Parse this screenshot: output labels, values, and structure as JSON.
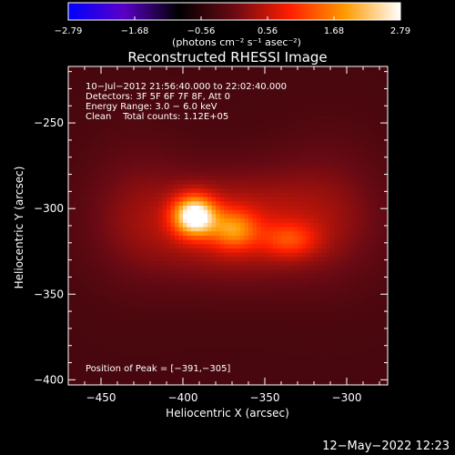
{
  "chart_data": {
    "type": "heatmap",
    "title": "Reconstructed RHESSI Image",
    "xlabel": "Heliocentric X (arcsec)",
    "ylabel": "Heliocentric Y (arcsec)",
    "xlim": [
      -470,
      -275
    ],
    "ylim": [
      -403,
      -217
    ],
    "x_ticks": [
      -450,
      -400,
      -350,
      -300
    ],
    "y_ticks": [
      -250,
      -300,
      -350,
      -400
    ],
    "x_tick_labels": [
      "−450",
      "−400",
      "−350",
      "−300"
    ],
    "y_tick_labels": [
      "−250",
      "−300",
      "−350",
      "−400"
    ],
    "colorbar": {
      "min": -2.79,
      "max": 2.79,
      "tick_labels": [
        "−2.79",
        "−1.68",
        "−0.56",
        "0.56",
        "1.68",
        "2.79"
      ],
      "units": "(photons cm⁻² s⁻¹ asec⁻²)",
      "colormap": [
        "#0000ff",
        "#5a00c8",
        "#000000",
        "#6a0a14",
        "#ff1e00",
        "#ff9a00",
        "#ffffff"
      ]
    },
    "annotations": [
      "10−Jul−2012 21:56:40.000 to 22:02:40.000",
      "Detectors: 3F 5F 6F 7F 8F, Att 0",
      "Energy Range: 3.0 − 6.0 keV",
      "Clean    Total counts: 1.12E+05"
    ],
    "peak_label": "Position of Peak = [−391,−305]",
    "peak": {
      "x": -391,
      "y": -305
    },
    "sources": [
      {
        "x": -393,
        "y": -304,
        "peak_value": 2.79,
        "sigma_x": 9,
        "sigma_y": 8
      },
      {
        "x": -369,
        "y": -312,
        "peak_value": 1.3,
        "sigma_x": 10,
        "sigma_y": 8
      },
      {
        "x": -335,
        "y": -318,
        "peak_value": 0.85,
        "sigma_x": 12,
        "sigma_y": 7
      },
      {
        "x": -370,
        "y": -310,
        "peak_value": 0.9,
        "sigma_x": 42,
        "sigma_y": 22
      },
      {
        "x": -310,
        "y": -300,
        "peak_value": 0.35,
        "sigma_x": 25,
        "sigma_y": 30
      },
      {
        "x": -430,
        "y": -300,
        "peak_value": 0.3,
        "sigma_x": 22,
        "sigma_y": 30
      }
    ]
  },
  "footer": {
    "timestamp": "12−May−2022 12:23"
  }
}
